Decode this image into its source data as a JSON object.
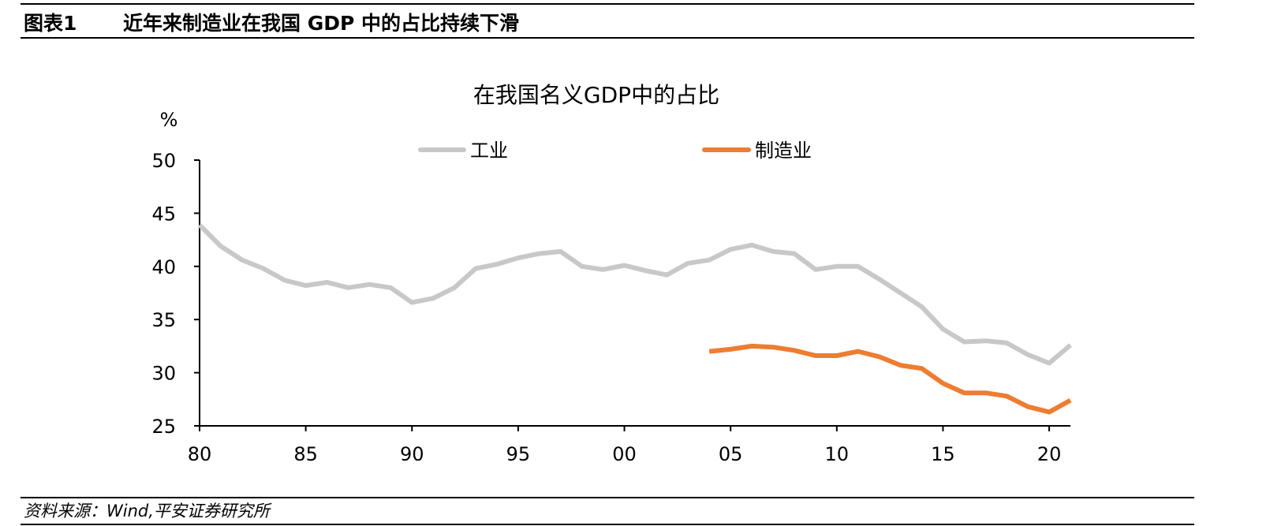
{
  "header": {
    "figure_label": "图表1",
    "title": "近年来制造业在我国 GDP 中的占比持续下滑"
  },
  "source": "资料来源：Wind,平安证券研究所",
  "colors": {
    "industry": "#c8c8c8",
    "manufacturing": "#ed7d31",
    "axis": "#000000",
    "rule": "#000000"
  },
  "chart_data": {
    "type": "line",
    "title": "在我国名义GDP中的占比",
    "ylabel": "%",
    "xlabel": "",
    "ylim": [
      25,
      50
    ],
    "xlim": [
      1980,
      2021
    ],
    "yticks": [
      50,
      45,
      40,
      35,
      30,
      25
    ],
    "xticks": [
      {
        "value": 1980,
        "label": "80"
      },
      {
        "value": 1985,
        "label": "85"
      },
      {
        "value": 1990,
        "label": "90"
      },
      {
        "value": 1995,
        "label": "95"
      },
      {
        "value": 2000,
        "label": "00"
      },
      {
        "value": 2005,
        "label": "05"
      },
      {
        "value": 2010,
        "label": "10"
      },
      {
        "value": 2015,
        "label": "15"
      },
      {
        "value": 2020,
        "label": "20"
      }
    ],
    "grid": false,
    "legend_position": "top",
    "series": [
      {
        "name": "工业",
        "color": "#c8c8c8",
        "x": [
          1980,
          1981,
          1982,
          1983,
          1984,
          1985,
          1986,
          1987,
          1988,
          1989,
          1990,
          1991,
          1992,
          1993,
          1994,
          1995,
          1996,
          1997,
          1998,
          1999,
          2000,
          2001,
          2002,
          2003,
          2004,
          2005,
          2006,
          2007,
          2008,
          2009,
          2010,
          2011,
          2012,
          2013,
          2014,
          2015,
          2016,
          2017,
          2018,
          2019,
          2020,
          2021
        ],
        "values": [
          43.9,
          41.9,
          40.6,
          39.8,
          38.7,
          38.2,
          38.5,
          38.0,
          38.3,
          38.0,
          36.6,
          37.0,
          38.0,
          39.8,
          40.2,
          40.8,
          41.2,
          41.4,
          40.0,
          39.7,
          40.1,
          39.6,
          39.2,
          40.3,
          40.6,
          41.6,
          42.0,
          41.4,
          41.2,
          39.7,
          40.0,
          40.0,
          38.8,
          37.5,
          36.2,
          34.1,
          32.9,
          33.0,
          32.8,
          31.7,
          30.9,
          32.6
        ]
      },
      {
        "name": "制造业",
        "color": "#ed7d31",
        "x": [
          2004,
          2005,
          2006,
          2007,
          2008,
          2009,
          2010,
          2011,
          2012,
          2013,
          2014,
          2015,
          2016,
          2017,
          2018,
          2019,
          2020,
          2021
        ],
        "values": [
          32.0,
          32.2,
          32.5,
          32.4,
          32.1,
          31.6,
          31.6,
          32.0,
          31.5,
          30.7,
          30.4,
          29.0,
          28.1,
          28.1,
          27.8,
          26.8,
          26.3,
          27.4
        ]
      }
    ]
  }
}
